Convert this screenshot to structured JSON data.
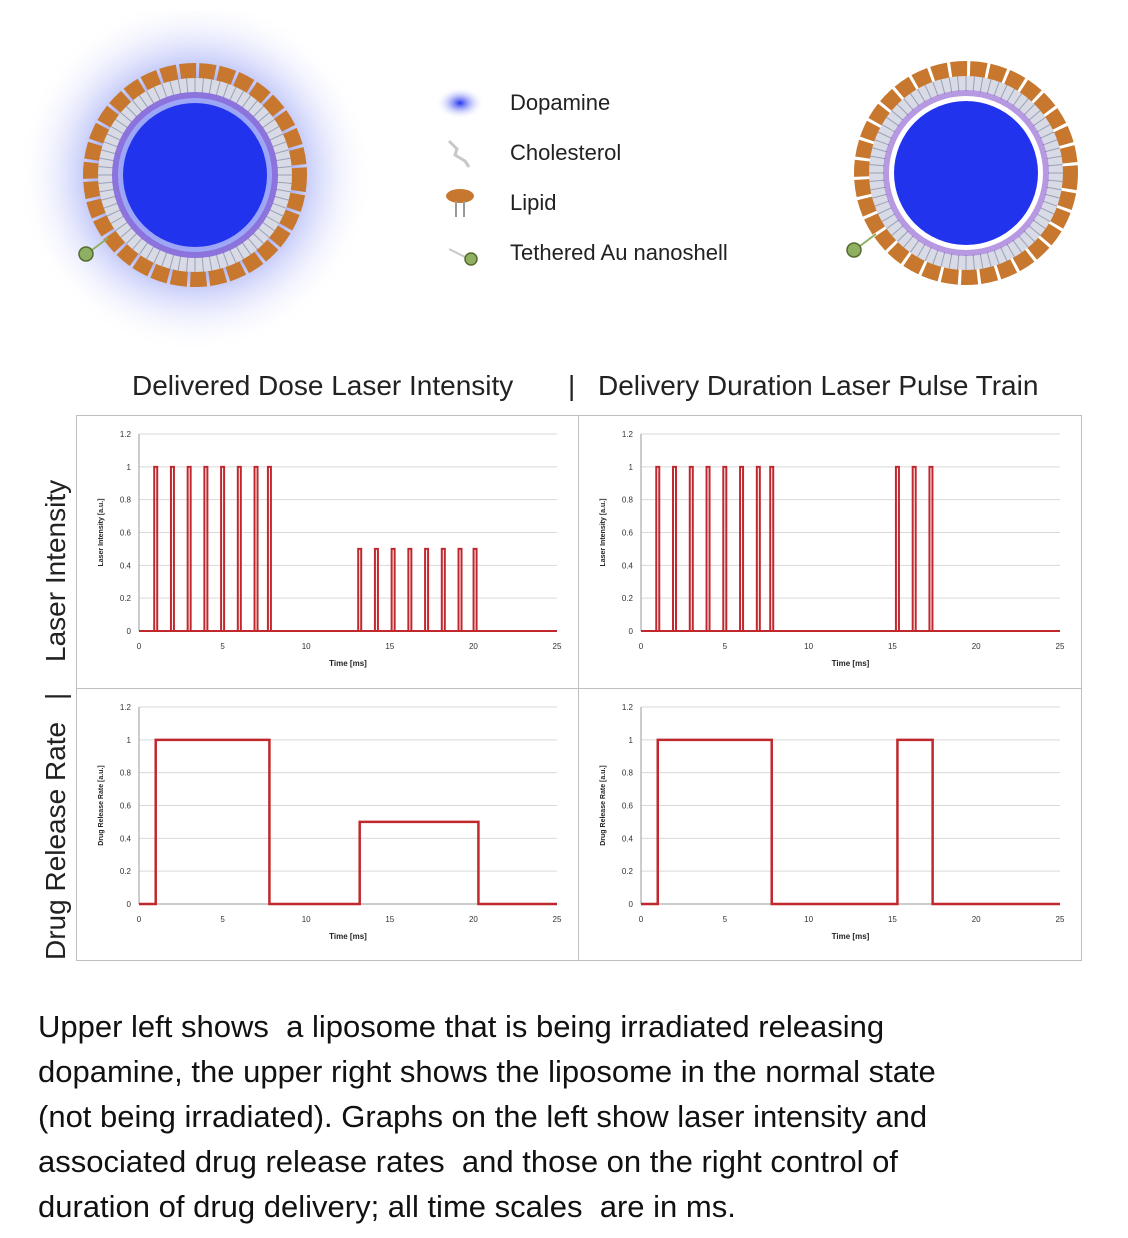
{
  "colors": {
    "dopamine": "#2233ee",
    "lipid": "#c7782e",
    "cholesterol": "#c8c8c8",
    "nanoshell": "#8fb062",
    "trace": "#c0282e",
    "grid": "#d9d9d9"
  },
  "legend": [
    {
      "icon": "dopamine-icon",
      "label": "Dopamine"
    },
    {
      "icon": "cholesterol-icon",
      "label": "Cholesterol"
    },
    {
      "icon": "lipid-icon",
      "label": "Lipid"
    },
    {
      "icon": "nanoshell-icon",
      "label": "Tethered Au nanoshell"
    }
  ],
  "headers": {
    "left": "Delivered Dose Laser Intensity",
    "separator": "|",
    "right": "Delivery Duration Laser Pulse Train",
    "row_top": "Laser Intensity",
    "row_separator": "|",
    "row_bottom": "Drug Release Rate"
  },
  "chart_data": [
    {
      "id": "tl",
      "type": "line",
      "xlabel": "Time [ms]",
      "ylabel": "Laser Intensity [a.u.]",
      "xlim": [
        0,
        25
      ],
      "ylim": [
        0,
        1.2
      ],
      "xticks": [
        0,
        5,
        10,
        15,
        20,
        25
      ],
      "yticks": [
        0,
        0.2,
        0.4,
        0.6,
        0.8,
        1,
        1.2
      ],
      "mode": "pulses",
      "pulses": [
        {
          "t": 1.0,
          "h": 1
        },
        {
          "t": 2.0,
          "h": 1
        },
        {
          "t": 3.0,
          "h": 1
        },
        {
          "t": 4.0,
          "h": 1
        },
        {
          "t": 5.0,
          "h": 1
        },
        {
          "t": 6.0,
          "h": 1
        },
        {
          "t": 7.0,
          "h": 1
        },
        {
          "t": 7.8,
          "h": 1
        },
        {
          "t": 13.2,
          "h": 0.5
        },
        {
          "t": 14.2,
          "h": 0.5
        },
        {
          "t": 15.2,
          "h": 0.5
        },
        {
          "t": 16.2,
          "h": 0.5
        },
        {
          "t": 17.2,
          "h": 0.5
        },
        {
          "t": 18.2,
          "h": 0.5
        },
        {
          "t": 19.2,
          "h": 0.5
        },
        {
          "t": 20.1,
          "h": 0.5
        }
      ]
    },
    {
      "id": "tr",
      "type": "line",
      "xlabel": "Time [ms]",
      "ylabel": "Laser Intensity [a.u.]",
      "xlim": [
        0,
        25
      ],
      "ylim": [
        0,
        1.2
      ],
      "xticks": [
        0,
        5,
        10,
        15,
        20,
        25
      ],
      "yticks": [
        0,
        0.2,
        0.4,
        0.6,
        0.8,
        1,
        1.2
      ],
      "mode": "pulses",
      "pulses": [
        {
          "t": 1.0,
          "h": 1
        },
        {
          "t": 2.0,
          "h": 1
        },
        {
          "t": 3.0,
          "h": 1
        },
        {
          "t": 4.0,
          "h": 1
        },
        {
          "t": 5.0,
          "h": 1
        },
        {
          "t": 6.0,
          "h": 1
        },
        {
          "t": 7.0,
          "h": 1
        },
        {
          "t": 7.8,
          "h": 1
        },
        {
          "t": 15.3,
          "h": 1
        },
        {
          "t": 16.3,
          "h": 1
        },
        {
          "t": 17.3,
          "h": 1
        }
      ]
    },
    {
      "id": "bl",
      "type": "line",
      "xlabel": "Time [ms]",
      "ylabel": "Drug Release Rate [a.u.]",
      "xlim": [
        0,
        25
      ],
      "ylim": [
        0,
        1.2
      ],
      "xticks": [
        0,
        5,
        10,
        15,
        20,
        25
      ],
      "yticks": [
        0,
        0.2,
        0.4,
        0.6,
        0.8,
        1,
        1.2
      ],
      "mode": "step",
      "x": [
        0,
        1,
        1,
        7.8,
        7.8,
        13.2,
        13.2,
        20.3,
        20.3,
        25
      ],
      "y": [
        0,
        0,
        1,
        1,
        0,
        0,
        0.5,
        0.5,
        0,
        0
      ]
    },
    {
      "id": "br",
      "type": "line",
      "xlabel": "Time [ms]",
      "ylabel": "Drug Release Rate [a.u.]",
      "xlim": [
        0,
        25
      ],
      "ylim": [
        0,
        1.2
      ],
      "xticks": [
        0,
        5,
        10,
        15,
        20,
        25
      ],
      "yticks": [
        0,
        0.2,
        0.4,
        0.6,
        0.8,
        1,
        1.2
      ],
      "mode": "step",
      "x": [
        0,
        1,
        1,
        7.8,
        7.8,
        15.3,
        15.3,
        17.4,
        17.4,
        25
      ],
      "y": [
        0,
        0,
        1,
        1,
        0,
        0,
        1,
        1,
        0,
        0
      ]
    }
  ],
  "caption": [
    "Upper left shows  a liposome that is being irradiated releasing",
    "dopamine, the upper right shows the liposome in the normal state",
    "(not being irradiated). Graphs on the left show laser intensity and",
    "associated drug release rates  and those on the right control of",
    "duration of drug delivery; all time scales  are in ms."
  ]
}
